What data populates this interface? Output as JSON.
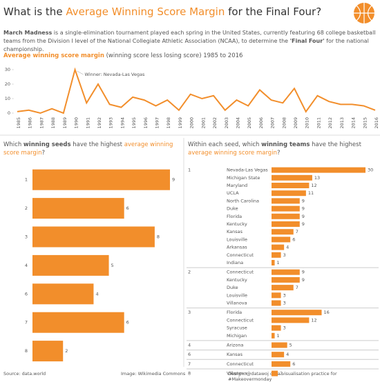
{
  "title": [
    "What is the ",
    "Average Winning Score Margin",
    " for the Final Four?"
  ],
  "description": [
    "March Madness",
    " is a single-elimination tournament played each spring in the United States, currently featuring 68 college basketball teams from the Division I level of the National Collegiate Athletic Association (NCAA), to determine the ",
    "'Final Four'",
    " for the national championship."
  ],
  "footer": {
    "source": "Source: data.world",
    "image": "Image: Wikimedia Commons",
    "design": "Design: @datawoj data visualisation practice for #Makeovermonday"
  },
  "chart_data": [
    {
      "type": "line",
      "title": [
        "Average winning score margin",
        " (winning score less losing score) 1985 to 2016"
      ],
      "color": "#f28e2b",
      "categories": [
        "1985",
        "1986",
        "1987",
        "1988",
        "1989",
        "1990",
        "1991",
        "1992",
        "1993",
        "1994",
        "1995",
        "1996",
        "1997",
        "1998",
        "1999",
        "2000",
        "2001",
        "2002",
        "2003",
        "2004",
        "2005",
        "2006",
        "2007",
        "2008",
        "2009",
        "2010",
        "2011",
        "2012",
        "2013",
        "2014",
        "2015",
        "2016"
      ],
      "values": [
        1,
        2,
        0,
        3,
        0,
        30,
        7,
        20,
        6,
        4,
        11,
        9,
        5,
        9,
        2,
        13,
        10,
        12,
        2,
        9,
        5,
        16,
        9,
        7,
        17,
        1,
        12,
        8,
        6,
        6,
        5,
        2
      ],
      "ylim": [
        0,
        30
      ],
      "yticks": [
        0,
        10,
        20,
        30
      ],
      "grid": false,
      "annotation": "Winner: Nevada-Las Vegas"
    },
    {
      "type": "hbar",
      "title": [
        "Which ",
        "winning seeds",
        " have the highest ",
        "average winning score margin",
        "?"
      ],
      "color": "#f28e2b",
      "categories": [
        "1",
        "2",
        "3",
        "4",
        "6",
        "7",
        "8"
      ],
      "values": [
        9,
        6,
        8,
        5,
        4,
        6,
        2
      ],
      "xlim": [
        0,
        9
      ]
    },
    {
      "type": "grouped-hbar",
      "title": [
        "Within each seed, which ",
        "winning teams",
        " have the highest ",
        "average winning score margin",
        "?"
      ],
      "color": "#f28e2b",
      "xlim": [
        0,
        30
      ],
      "groups": [
        {
          "label": "1",
          "categories": [
            "Nevada-Las Vegas",
            "Michigan State",
            "Maryland",
            "UCLA",
            "North Carolina",
            "Duke",
            "Florida",
            "Kentucky",
            "Kansas",
            "Louisville",
            "Arkansas",
            "Connecticut",
            "Indiana"
          ],
          "values": [
            30,
            13,
            12,
            11,
            9,
            9,
            9,
            9,
            7,
            6,
            4,
            3,
            1
          ]
        },
        {
          "label": "2",
          "categories": [
            "Connecticut",
            "Kentucky",
            "Duke",
            "Louisville",
            "Villanova"
          ],
          "values": [
            9,
            9,
            7,
            3,
            3
          ]
        },
        {
          "label": "3",
          "categories": [
            "Florida",
            "Connecticut",
            "Syracuse",
            "Michigan"
          ],
          "values": [
            16,
            12,
            3,
            1
          ]
        },
        {
          "label": "4",
          "categories": [
            "Arizona"
          ],
          "values": [
            5
          ]
        },
        {
          "label": "6",
          "categories": [
            "Kansas"
          ],
          "values": [
            4
          ]
        },
        {
          "label": "7",
          "categories": [
            "Connecticut"
          ],
          "values": [
            6
          ]
        },
        {
          "label": "8",
          "categories": [
            "Villanova"
          ],
          "values": [
            2
          ]
        }
      ]
    }
  ]
}
